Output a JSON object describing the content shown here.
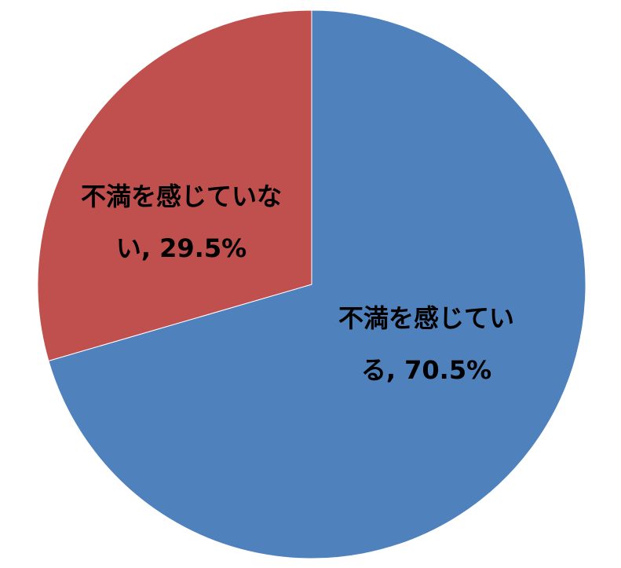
{
  "chart_data": {
    "type": "pie",
    "title": "",
    "start_angle": "top",
    "direction": "clockwise",
    "slices": [
      {
        "label": "不満を感じている",
        "value": 70.5,
        "display": "不満を感じている, 70.5%",
        "color": "#4F81BD"
      },
      {
        "label": "不満を感じていない",
        "value": 29.5,
        "display": "不満を感じていない, 29.5%",
        "color": "#C0504D"
      }
    ],
    "legend": "none"
  }
}
